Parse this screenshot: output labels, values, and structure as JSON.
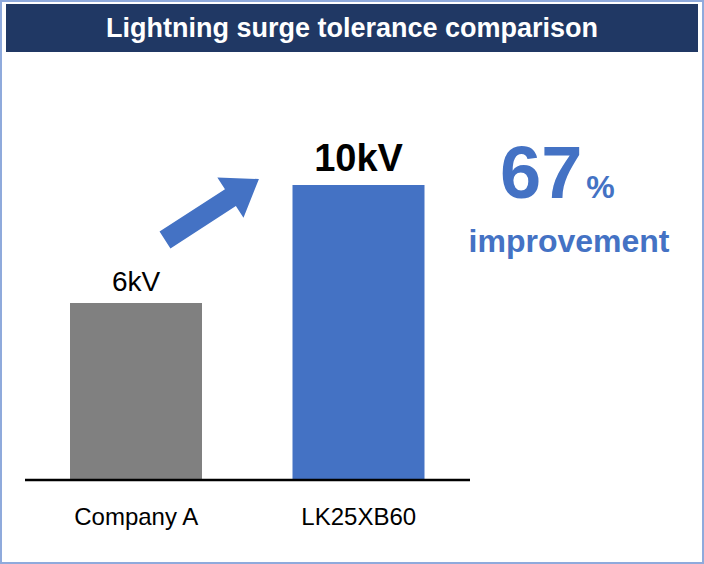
{
  "chart_data": {
    "type": "bar",
    "title": "Lightning surge tolerance comparison",
    "categories": [
      "Company A",
      "LK25XB60"
    ],
    "values": [
      6,
      10
    ],
    "value_labels": [
      "6kV",
      "10kV"
    ],
    "colors": [
      "#808080",
      "#4472c4"
    ],
    "ylim": [
      0,
      10
    ],
    "data_labels": true,
    "tick_labels": "x",
    "annotation": {
      "number": "67",
      "unit": "%",
      "text": "improvement"
    }
  }
}
